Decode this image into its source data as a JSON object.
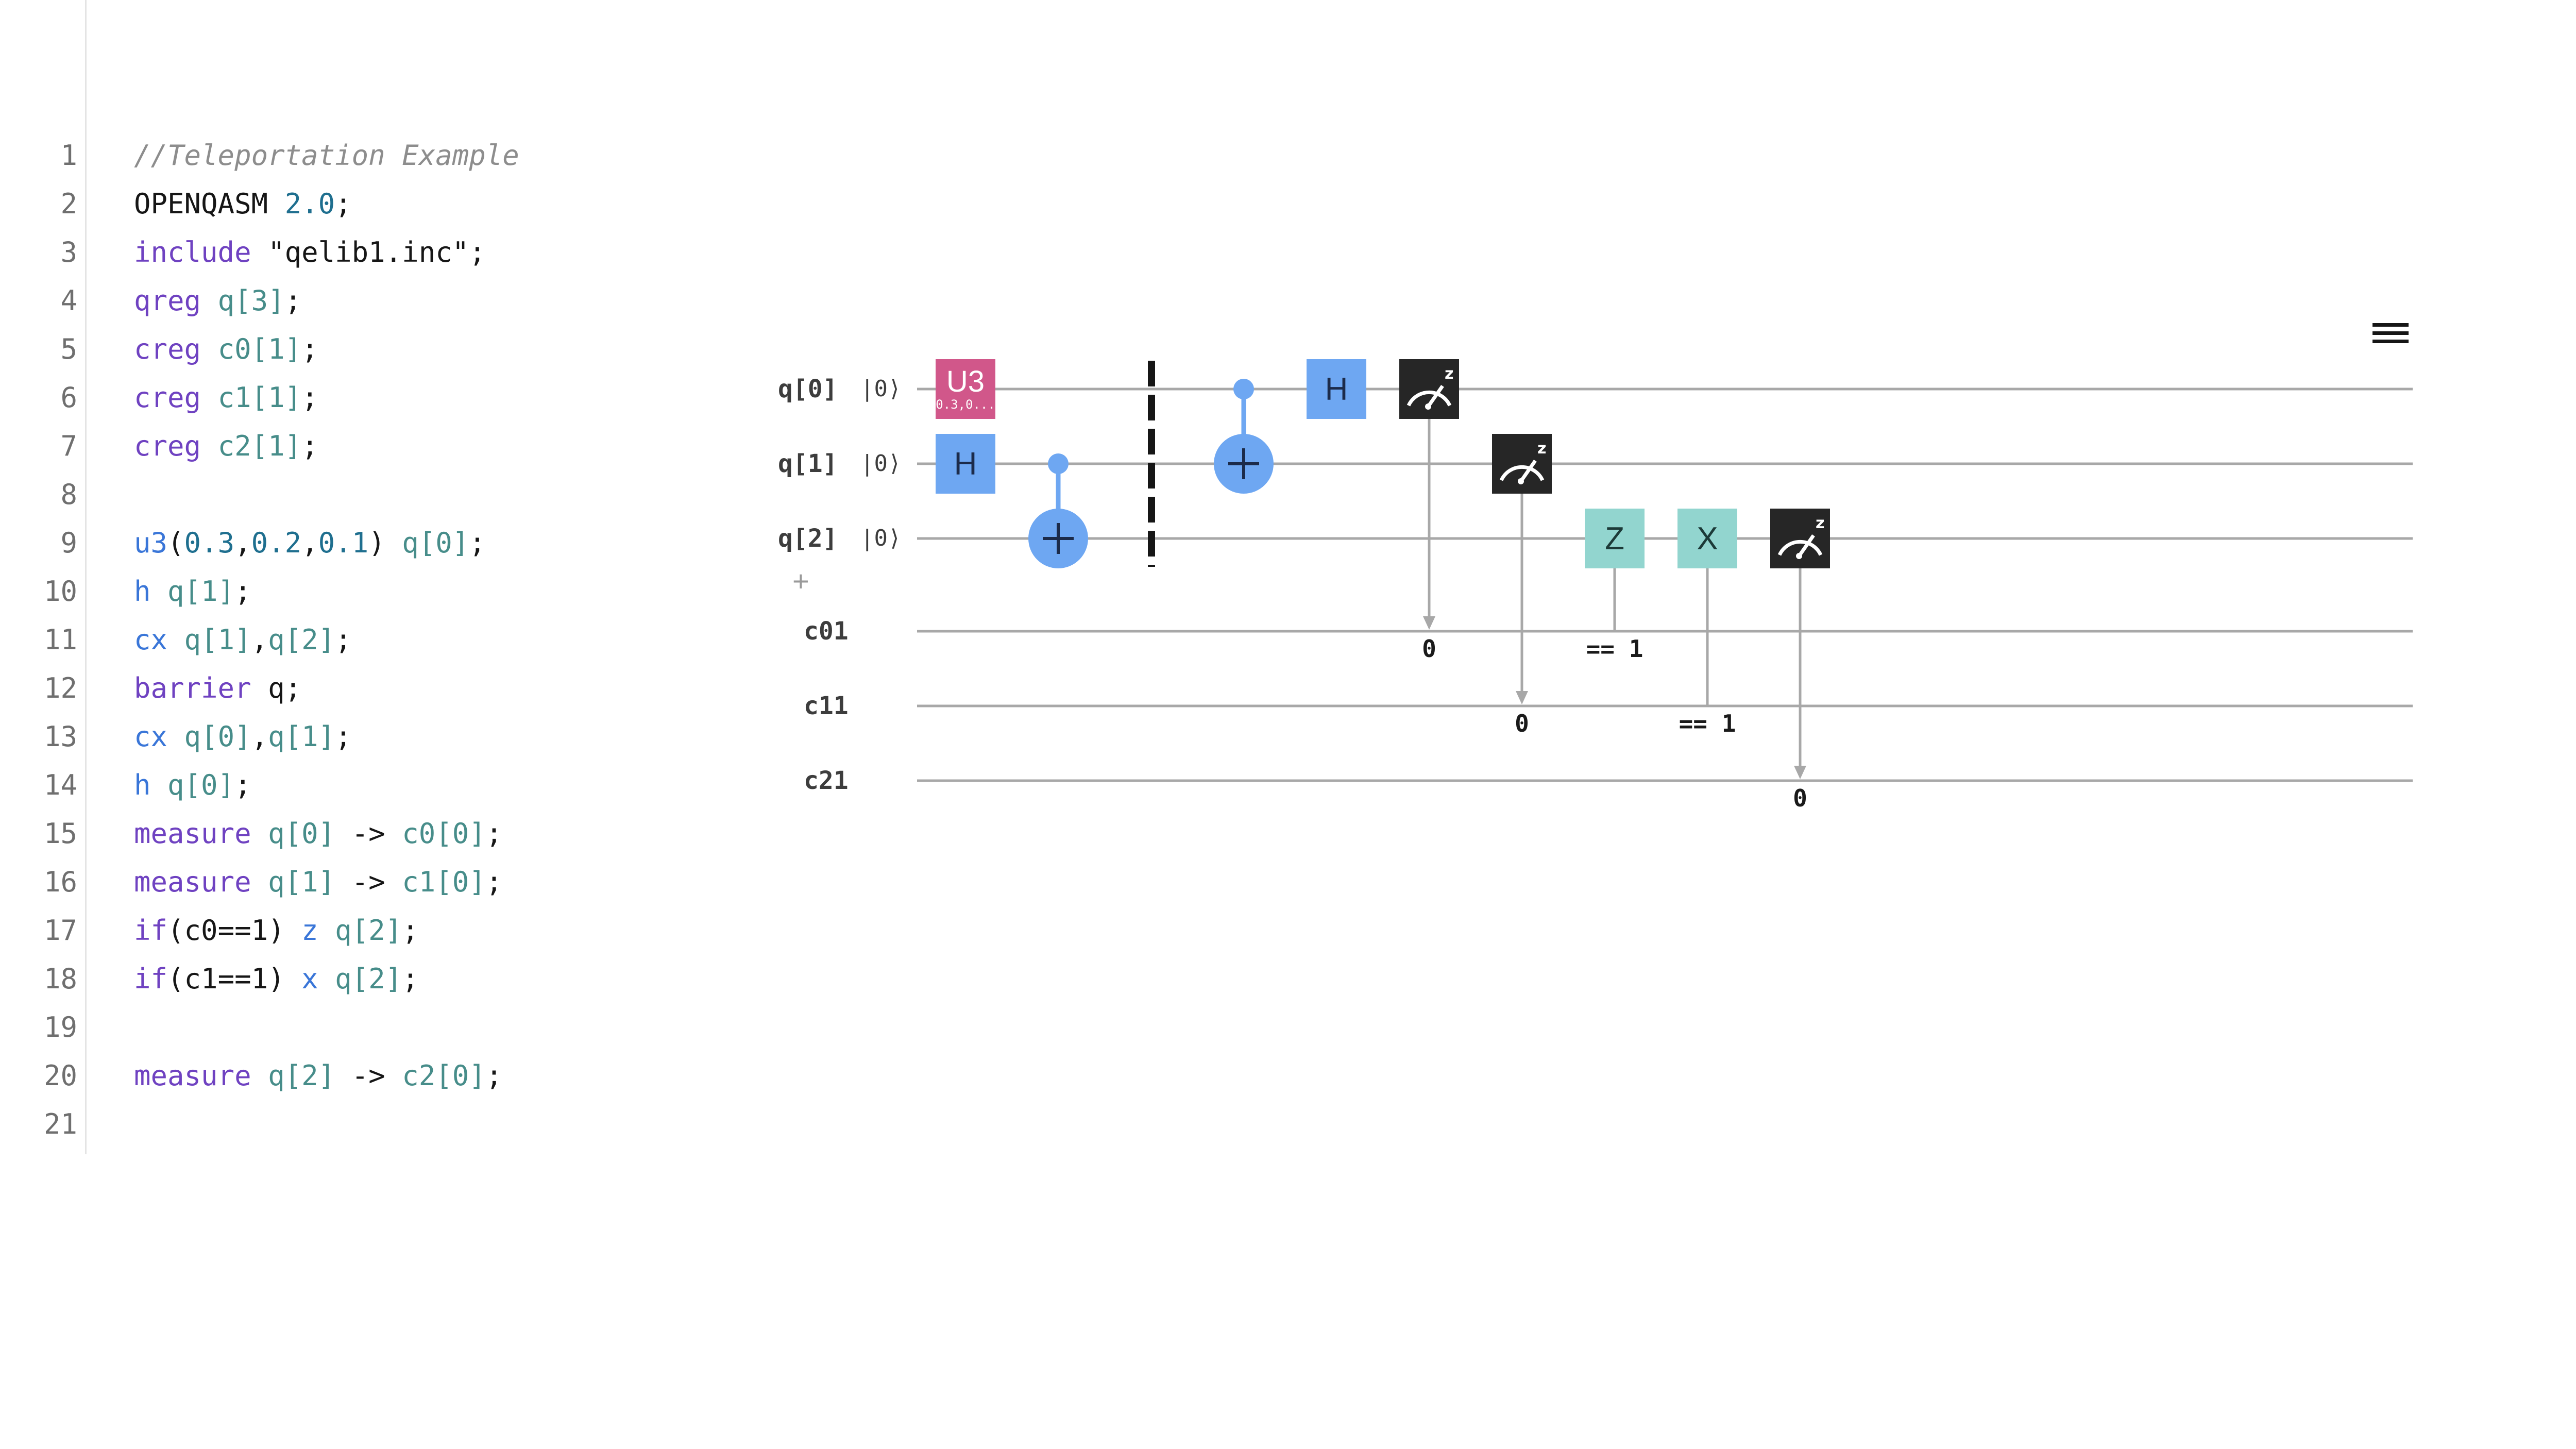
{
  "editor": {
    "lines": [
      {
        "n": "1",
        "tokens": [
          {
            "t": "//Teleportation Example",
            "c": "comment"
          }
        ]
      },
      {
        "n": "2",
        "tokens": [
          {
            "t": "OPENQASM ",
            "c": "plain"
          },
          {
            "t": "2.0",
            "c": "num"
          },
          {
            "t": ";",
            "c": "plain"
          }
        ]
      },
      {
        "n": "3",
        "tokens": [
          {
            "t": "include ",
            "c": "keyword"
          },
          {
            "t": "\"qelib1.inc\"",
            "c": "string"
          },
          {
            "t": ";",
            "c": "plain"
          }
        ]
      },
      {
        "n": "4",
        "tokens": [
          {
            "t": "qreg ",
            "c": "keyword"
          },
          {
            "t": "q[3]",
            "c": "reg"
          },
          {
            "t": ";",
            "c": "plain"
          }
        ]
      },
      {
        "n": "5",
        "tokens": [
          {
            "t": "creg ",
            "c": "keyword"
          },
          {
            "t": "c0[1]",
            "c": "reg"
          },
          {
            "t": ";",
            "c": "plain"
          }
        ]
      },
      {
        "n": "6",
        "tokens": [
          {
            "t": "creg ",
            "c": "keyword"
          },
          {
            "t": "c1[1]",
            "c": "reg"
          },
          {
            "t": ";",
            "c": "plain"
          }
        ]
      },
      {
        "n": "7",
        "tokens": [
          {
            "t": "creg ",
            "c": "keyword"
          },
          {
            "t": "c2[1]",
            "c": "reg"
          },
          {
            "t": ";",
            "c": "plain"
          }
        ]
      },
      {
        "n": "8",
        "tokens": []
      },
      {
        "n": "9",
        "tokens": [
          {
            "t": "u3",
            "c": "gate"
          },
          {
            "t": "(",
            "c": "plain"
          },
          {
            "t": "0.3",
            "c": "num"
          },
          {
            "t": ",",
            "c": "plain"
          },
          {
            "t": "0.2",
            "c": "num"
          },
          {
            "t": ",",
            "c": "plain"
          },
          {
            "t": "0.1",
            "c": "num"
          },
          {
            "t": ") ",
            "c": "plain"
          },
          {
            "t": "q[0]",
            "c": "reg"
          },
          {
            "t": ";",
            "c": "plain"
          }
        ]
      },
      {
        "n": "10",
        "tokens": [
          {
            "t": "h ",
            "c": "gate"
          },
          {
            "t": "q[1]",
            "c": "reg"
          },
          {
            "t": ";",
            "c": "plain"
          }
        ]
      },
      {
        "n": "11",
        "tokens": [
          {
            "t": "cx ",
            "c": "gate"
          },
          {
            "t": "q[1]",
            "c": "reg"
          },
          {
            "t": ",",
            "c": "plain"
          },
          {
            "t": "q[2]",
            "c": "reg"
          },
          {
            "t": ";",
            "c": "plain"
          }
        ]
      },
      {
        "n": "12",
        "tokens": [
          {
            "t": "barrier ",
            "c": "keyword"
          },
          {
            "t": "q",
            "c": "plain"
          },
          {
            "t": ";",
            "c": "plain"
          }
        ]
      },
      {
        "n": "13",
        "tokens": [
          {
            "t": "cx ",
            "c": "gate"
          },
          {
            "t": "q[0]",
            "c": "reg"
          },
          {
            "t": ",",
            "c": "plain"
          },
          {
            "t": "q[1]",
            "c": "reg"
          },
          {
            "t": ";",
            "c": "plain"
          }
        ]
      },
      {
        "n": "14",
        "tokens": [
          {
            "t": "h ",
            "c": "gate"
          },
          {
            "t": "q[0]",
            "c": "reg"
          },
          {
            "t": ";",
            "c": "plain"
          }
        ]
      },
      {
        "n": "15",
        "tokens": [
          {
            "t": "measure ",
            "c": "keyword"
          },
          {
            "t": "q[0]",
            "c": "reg"
          },
          {
            "t": " -> ",
            "c": "plain"
          },
          {
            "t": "c0[0]",
            "c": "reg"
          },
          {
            "t": ";",
            "c": "plain"
          }
        ]
      },
      {
        "n": "16",
        "tokens": [
          {
            "t": "measure ",
            "c": "keyword"
          },
          {
            "t": "q[1]",
            "c": "reg"
          },
          {
            "t": " -> ",
            "c": "plain"
          },
          {
            "t": "c1[0]",
            "c": "reg"
          },
          {
            "t": ";",
            "c": "plain"
          }
        ]
      },
      {
        "n": "17",
        "tokens": [
          {
            "t": "if",
            "c": "keyword"
          },
          {
            "t": "(c0==1) ",
            "c": "plain"
          },
          {
            "t": "z ",
            "c": "gate"
          },
          {
            "t": "q[2]",
            "c": "reg"
          },
          {
            "t": ";",
            "c": "plain"
          }
        ]
      },
      {
        "n": "18",
        "tokens": [
          {
            "t": "if",
            "c": "keyword"
          },
          {
            "t": "(c1==1) ",
            "c": "plain"
          },
          {
            "t": "x ",
            "c": "gate"
          },
          {
            "t": "q[2]",
            "c": "reg"
          },
          {
            "t": ";",
            "c": "plain"
          }
        ]
      },
      {
        "n": "19",
        "tokens": []
      },
      {
        "n": "20",
        "tokens": [
          {
            "t": "measure ",
            "c": "keyword"
          },
          {
            "t": "q[2]",
            "c": "reg"
          },
          {
            "t": " -> ",
            "c": "plain"
          },
          {
            "t": "c2[0]",
            "c": "reg"
          },
          {
            "t": ";",
            "c": "plain"
          }
        ]
      },
      {
        "n": "21",
        "tokens": []
      }
    ]
  },
  "circuit": {
    "qubits": [
      {
        "label": "q[0]",
        "ket": "|0⟩"
      },
      {
        "label": "q[1]",
        "ket": "|0⟩"
      },
      {
        "label": "q[2]",
        "ket": "|0⟩"
      }
    ],
    "cbits": [
      {
        "label": "c01"
      },
      {
        "label": "c11"
      },
      {
        "label": "c21"
      }
    ],
    "add_wire_icon": "+",
    "gates": {
      "u3": {
        "name": "U3",
        "params": "0.3,0..."
      },
      "h_q1": "H",
      "h_q0": "H",
      "z": "Z",
      "x": "X"
    },
    "measure_values": {
      "m0": "0",
      "m1": "0",
      "m2": "0"
    },
    "conditions": {
      "z": "== 1",
      "x": "== 1"
    },
    "colors": {
      "wire": "#a8a8a8",
      "h_gate": "#6ea7f2",
      "u3_gate": "#d1578a",
      "zx_gate": "#92d5cf",
      "measure": "#262626",
      "control": "#6ea7f2",
      "barrier": "#161616"
    },
    "menu_icon": "hamburger-menu-icon"
  }
}
